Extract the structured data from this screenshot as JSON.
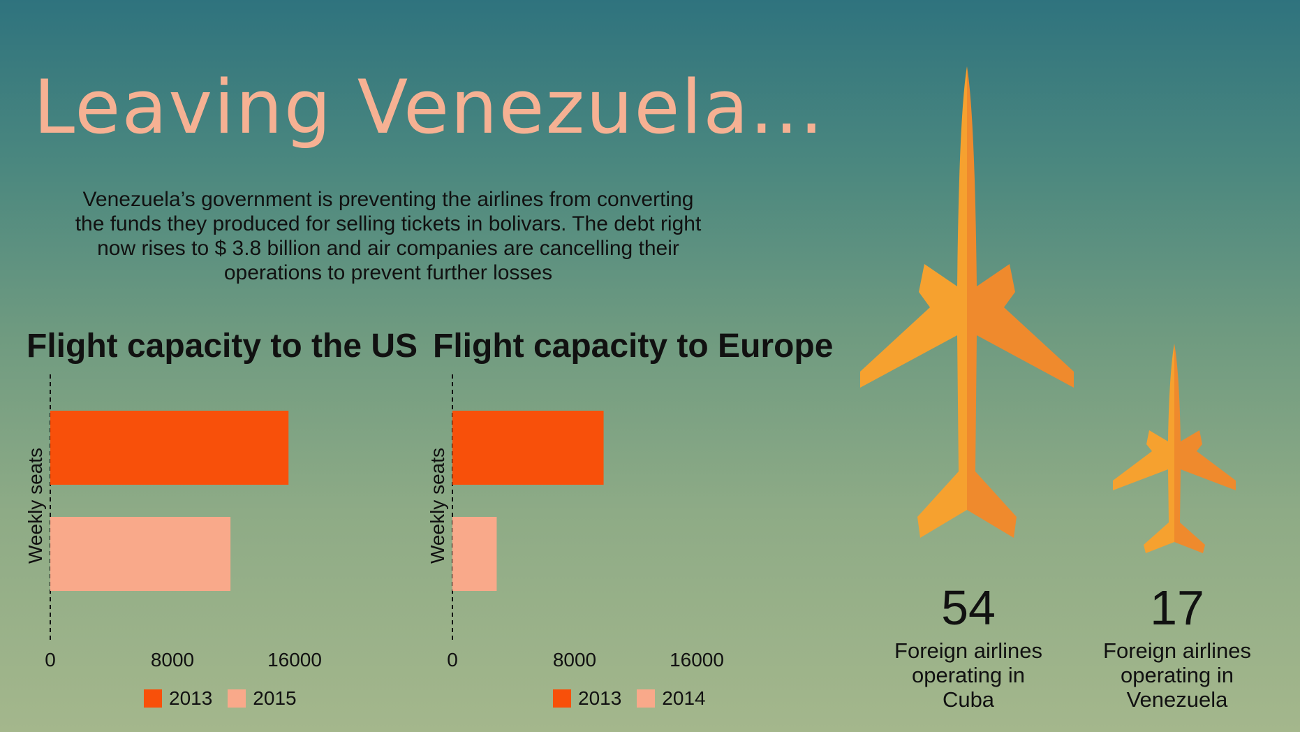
{
  "header": {
    "title": "Leaving Venezuela...",
    "intro_lines": [
      "Venezuela’s government is preventing the airlines from converting",
      "the funds they produced for selling tickets in bolivars. The debt right",
      "now rises to $ 3.8 billion and air companies are cancelling their",
      "operations to prevent further losses"
    ]
  },
  "colors": {
    "bar_dark": "#f8500a",
    "bar_light": "#f9a98a",
    "plane_light": "#f6a12f",
    "plane_dark": "#ef8a2d"
  },
  "chart_data": [
    {
      "type": "bar",
      "orientation": "horizontal",
      "title": "Flight capacity to the US",
      "ylabel": "Weekly seats",
      "xlim": [
        0,
        16000
      ],
      "xticks": [
        "0",
        "8000",
        "16000"
      ],
      "series": [
        {
          "name": "2013",
          "values": [
            15600
          ]
        },
        {
          "name": "2015",
          "values": [
            11800
          ]
        }
      ],
      "legend": "bottom"
    },
    {
      "type": "bar",
      "orientation": "horizontal",
      "title": "Flight capacity to Europe",
      "ylabel": "Weekly seats",
      "xlim": [
        0,
        16000
      ],
      "xticks": [
        "0",
        "8000",
        "16000"
      ],
      "series": [
        {
          "name": "2013",
          "values": [
            9900
          ]
        },
        {
          "name": "2014",
          "values": [
            2900
          ]
        }
      ],
      "legend": "bottom"
    }
  ],
  "stats": [
    {
      "value": "54",
      "label_lines": [
        "Foreign airlines",
        "operating in",
        "Cuba"
      ]
    },
    {
      "value": "17",
      "label_lines": [
        "Foreign airlines",
        "operating in",
        "Venezuela"
      ]
    }
  ]
}
